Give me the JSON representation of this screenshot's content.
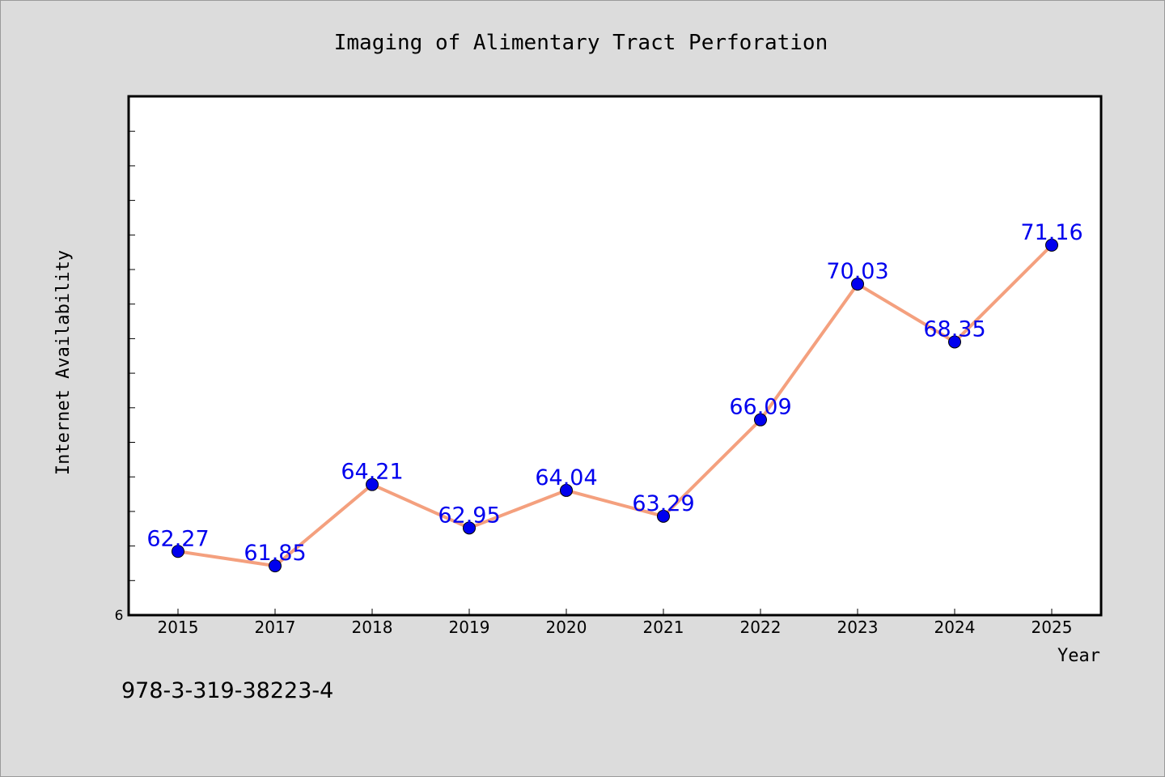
{
  "chart_data": {
    "type": "line",
    "title": "Imaging of Alimentary Tract Perforation",
    "xlabel": "Year",
    "ylabel": "Internet Availability",
    "categories": [
      "2015",
      "2017",
      "2018",
      "2019",
      "2020",
      "2021",
      "2022",
      "2023",
      "2024",
      "2025"
    ],
    "series": [
      {
        "values": [
          62.27,
          61.85,
          64.21,
          62.95,
          64.04,
          63.29,
          66.09,
          70.03,
          68.35,
          71.16
        ],
        "labels": [
          "62.27",
          "61.85",
          "64.21",
          "62.95",
          "64.04",
          "63.29",
          "66.09",
          "70.03",
          "68.35",
          "71.16"
        ]
      }
    ],
    "y_tick_label": "6",
    "ylim": [
      60.42,
      75.48
    ],
    "grid": false,
    "line_color": "#f4a07e",
    "marker_color": "#0000ee",
    "label_color": "#0000ee"
  },
  "footer": {
    "isbn": "978-3-319-38223-4"
  }
}
